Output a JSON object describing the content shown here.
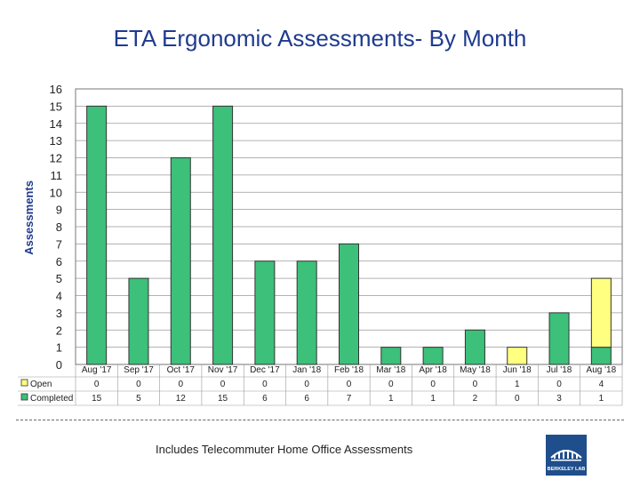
{
  "chart_data": {
    "type": "bar",
    "stacked": true,
    "title": "ETA Ergonomic Assessments- By Month",
    "ylabel": "Assessments",
    "xlabel": "",
    "ylim": [
      0,
      16
    ],
    "yticks": [
      0,
      1,
      2,
      3,
      4,
      5,
      6,
      7,
      8,
      9,
      10,
      11,
      12,
      13,
      14,
      15,
      16
    ],
    "grid": true,
    "categories": [
      "Aug '17",
      "Sep '17",
      "Oct '17",
      "Nov '17",
      "Dec '17",
      "Jan '18",
      "Feb '18",
      "Mar '18",
      "Apr '18",
      "May '18",
      "Jun '18",
      "Jul '18",
      "Aug '18"
    ],
    "series": [
      {
        "name": "Completed",
        "values": [
          15,
          5,
          12,
          15,
          6,
          6,
          7,
          1,
          1,
          2,
          0,
          3,
          1
        ],
        "color": "#3cc07a"
      },
      {
        "name": "Open",
        "values": [
          0,
          0,
          0,
          0,
          0,
          0,
          0,
          0,
          0,
          0,
          1,
          0,
          4
        ],
        "color": "#ffff80"
      }
    ],
    "legend_placement": "data-table"
  },
  "footnote": "Includes Telecommuter Home Office Assessments",
  "logo": {
    "text": "BERKELEY LAB",
    "color": "#1f4e8c"
  }
}
